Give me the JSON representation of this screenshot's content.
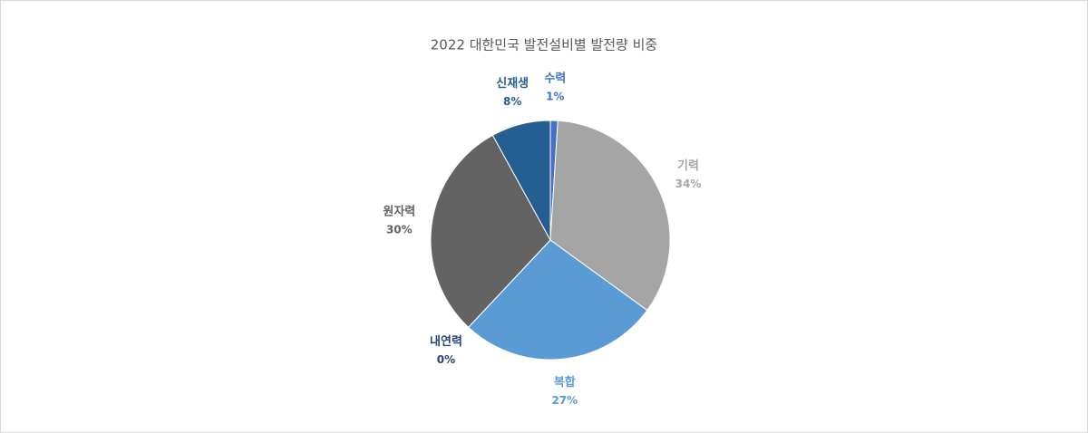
{
  "chart_data": {
    "type": "pie",
    "title": "2022 대한민국 발전설비별 발전량 비중",
    "categories": [
      "수력",
      "기력",
      "복합",
      "내연력",
      "원자력",
      "신재생"
    ],
    "values": [
      1,
      34,
      27,
      0,
      30,
      8
    ],
    "value_labels": [
      "1%",
      "34%",
      "27%",
      "0%",
      "30%",
      "8%"
    ],
    "colors": [
      "#4472c4",
      "#a5a5a5",
      "#5b9bd5",
      "#264478",
      "#636363",
      "#255e91"
    ]
  }
}
